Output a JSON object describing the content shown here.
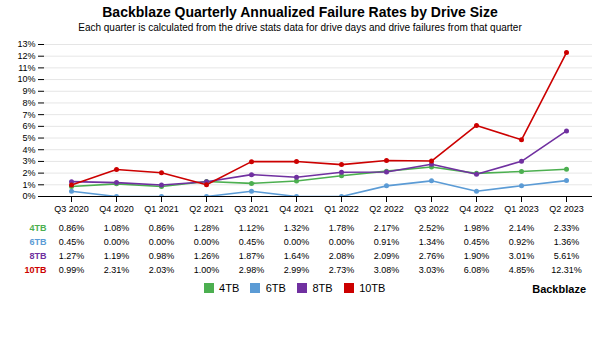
{
  "chart_data": {
    "type": "line",
    "title": "Backblaze Quarterly Annualized Failure Rates by Drive Size",
    "subtitle": "Each quarter is calculated from the drive stats data for drive days and drive failures from that quarter",
    "categories": [
      "Q3 2020",
      "Q4 2020",
      "Q1 2021",
      "Q2 2021",
      "Q3 2021",
      "Q4 2021",
      "Q1 2022",
      "Q2 2022",
      "Q3 2022",
      "Q4 2022",
      "Q1 2023",
      "Q2 2023"
    ],
    "series": [
      {
        "name": "4TB",
        "color": "#4caf50",
        "values": [
          0.86,
          1.08,
          0.86,
          1.28,
          1.12,
          1.32,
          1.78,
          2.17,
          2.52,
          1.98,
          2.14,
          2.33
        ],
        "value_labels": [
          "0.86%",
          "1.08%",
          "0.86%",
          "1.28%",
          "1.12%",
          "1.32%",
          "1.78%",
          "2.17%",
          "2.52%",
          "1.98%",
          "2.14%",
          "2.33%"
        ]
      },
      {
        "name": "6TB",
        "color": "#5b9bd5",
        "values": [
          0.45,
          0.0,
          0.0,
          0.0,
          0.45,
          0.0,
          0.0,
          0.91,
          1.34,
          0.45,
          0.92,
          1.36
        ],
        "value_labels": [
          "0.45%",
          "0.00%",
          "0.00%",
          "0.00%",
          "0.45%",
          "0.00%",
          "0.00%",
          "0.91%",
          "1.34%",
          "0.45%",
          "0.92%",
          "1.36%"
        ]
      },
      {
        "name": "8TB",
        "color": "#7030a0",
        "values": [
          1.27,
          1.19,
          0.98,
          1.26,
          1.87,
          1.64,
          2.08,
          2.09,
          2.76,
          1.9,
          3.01,
          5.61
        ],
        "value_labels": [
          "1.27%",
          "1.19%",
          "0.98%",
          "1.26%",
          "1.87%",
          "1.64%",
          "2.08%",
          "2.09%",
          "2.76%",
          "1.90%",
          "3.01%",
          "5.61%"
        ]
      },
      {
        "name": "10TB",
        "color": "#cc0000",
        "values": [
          0.99,
          2.31,
          2.03,
          1.0,
          2.98,
          2.99,
          2.73,
          3.08,
          3.03,
          6.08,
          4.85,
          12.31
        ],
        "value_labels": [
          "0.99%",
          "2.31%",
          "2.03%",
          "1.00%",
          "2.98%",
          "2.99%",
          "2.73%",
          "3.08%",
          "3.03%",
          "6.08%",
          "4.85%",
          "12.31%"
        ]
      }
    ],
    "ylim": [
      0,
      13
    ],
    "yticks": [
      {
        "value": 0,
        "label": "0%"
      },
      {
        "value": 1,
        "label": "1%"
      },
      {
        "value": 2,
        "label": "2%"
      },
      {
        "value": 3,
        "label": "3%"
      },
      {
        "value": 4,
        "label": "4%"
      },
      {
        "value": 5,
        "label": "5%"
      },
      {
        "value": 6,
        "label": "6%"
      },
      {
        "value": 7,
        "label": "7%"
      },
      {
        "value": 8,
        "label": "8%"
      },
      {
        "value": 9,
        "label": "9%"
      },
      {
        "value": 10,
        "label": "10%"
      },
      {
        "value": 11,
        "label": "11%"
      },
      {
        "value": 12,
        "label": "12%"
      },
      {
        "value": 13,
        "label": "13%"
      }
    ],
    "grid": true,
    "legend": "bottom",
    "marker": "circle",
    "annotations": [
      "Backblaze"
    ]
  }
}
